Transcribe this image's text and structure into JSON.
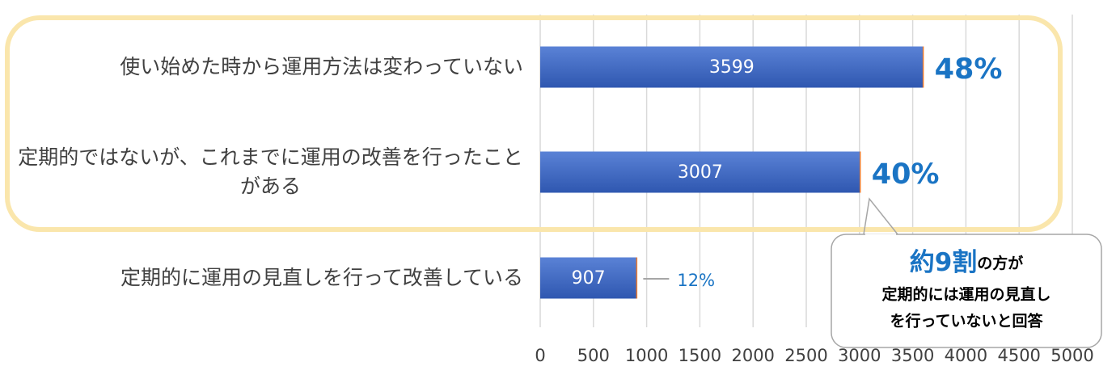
{
  "chart_data": {
    "type": "bar",
    "orientation": "horizontal",
    "categories": [
      "使い始めた時から運用方法は変わっていない",
      "定期的ではないが、これまでに運用の改善を行ったことがある",
      "定期的に運用の見直しを行って改善している"
    ],
    "values": [
      3599,
      3007,
      907
    ],
    "percent_labels": [
      "48%",
      "40%",
      "12%"
    ],
    "color": "#3d67c3",
    "xlim": [
      0,
      5000
    ],
    "xticks": [
      0,
      500,
      1000,
      1500,
      2000,
      2500,
      3000,
      3500,
      4000,
      4500,
      5000
    ],
    "grid": true,
    "callout": {
      "highlight": "約9割",
      "text": "の方が",
      "lines": [
        "定期的には運用の見直し",
        "を行っていないと回答"
      ]
    }
  }
}
